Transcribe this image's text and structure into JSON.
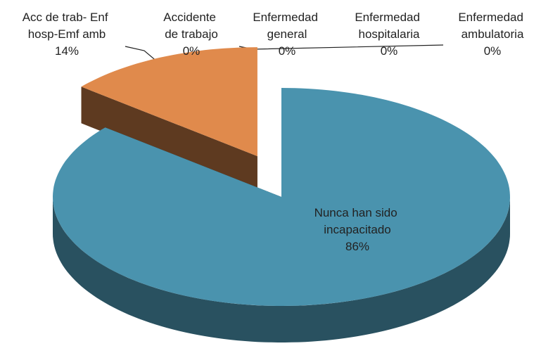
{
  "chart_data": {
    "type": "pie",
    "categories": [
      "Acc de trab- Enf hosp-Emf amb",
      "Accidente de trabajo",
      "Enfermedad general",
      "Enfermedad hospitalaria",
      "Enfermedad ambulatoria",
      "Nunca han sido incapacitado"
    ],
    "values": [
      14,
      0,
      0,
      0,
      0,
      86
    ],
    "value_labels": [
      "14%",
      "0%",
      "0%",
      "0%",
      "0%",
      "86%"
    ],
    "colors": [
      "#e08a4c",
      "#e08a4c",
      "#9bbb59",
      "#8064a2",
      "#4bacc6",
      "#4a93ae"
    ]
  }
}
